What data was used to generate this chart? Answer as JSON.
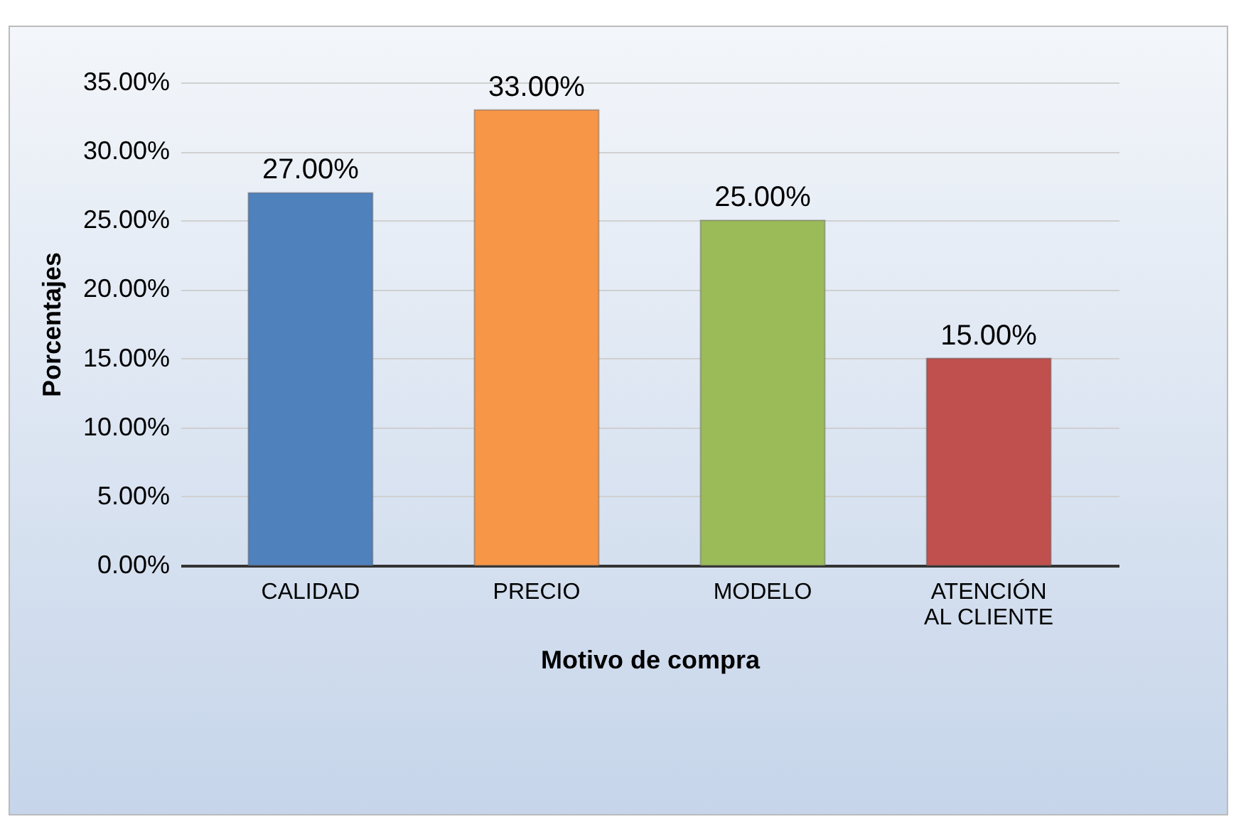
{
  "chart_data": {
    "type": "bar",
    "xlabel": "Motivo de compra",
    "ylabel": "Porcentajes",
    "categories": [
      "CALIDAD",
      "PRECIO",
      "MODELO",
      "ATENCIÓN AL CLIENTE"
    ],
    "values": [
      27,
      33,
      25,
      15
    ],
    "colors": [
      "#4f81bd",
      "#f79646",
      "#9bbb59",
      "#c0504d"
    ],
    "value_labels": [
      "27.00%",
      "33.00%",
      "25.00%",
      "15.00%"
    ],
    "ylim": [
      0,
      35
    ],
    "yticks": [
      {
        "value": 0,
        "label": "0.00%"
      },
      {
        "value": 5,
        "label": "5.00%"
      },
      {
        "value": 10,
        "label": "10.00%"
      },
      {
        "value": 15,
        "label": "15.00%"
      },
      {
        "value": 20,
        "label": "20.00%"
      },
      {
        "value": 25,
        "label": "25.00%"
      },
      {
        "value": 30,
        "label": "30.00%"
      },
      {
        "value": 35,
        "label": "35.00%"
      }
    ],
    "grid": true,
    "legend": false
  }
}
